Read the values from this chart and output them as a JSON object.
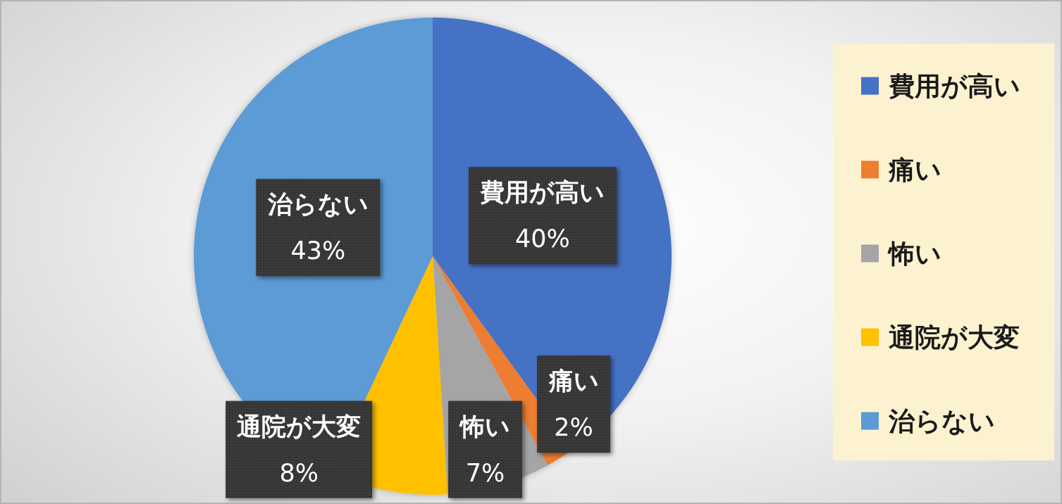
{
  "chart_data": {
    "type": "pie",
    "categories": [
      "費用が高い",
      "痛い",
      "怖い",
      "通院が大変",
      "治らない"
    ],
    "values": [
      40,
      2,
      7,
      8,
      43
    ],
    "colors": [
      "#4472c4",
      "#ed7d31",
      "#a5a5a5",
      "#ffc000",
      "#5b9bd5"
    ],
    "value_labels": [
      "40%",
      "2%",
      "7%",
      "8%",
      "43%"
    ],
    "legend": "right"
  }
}
